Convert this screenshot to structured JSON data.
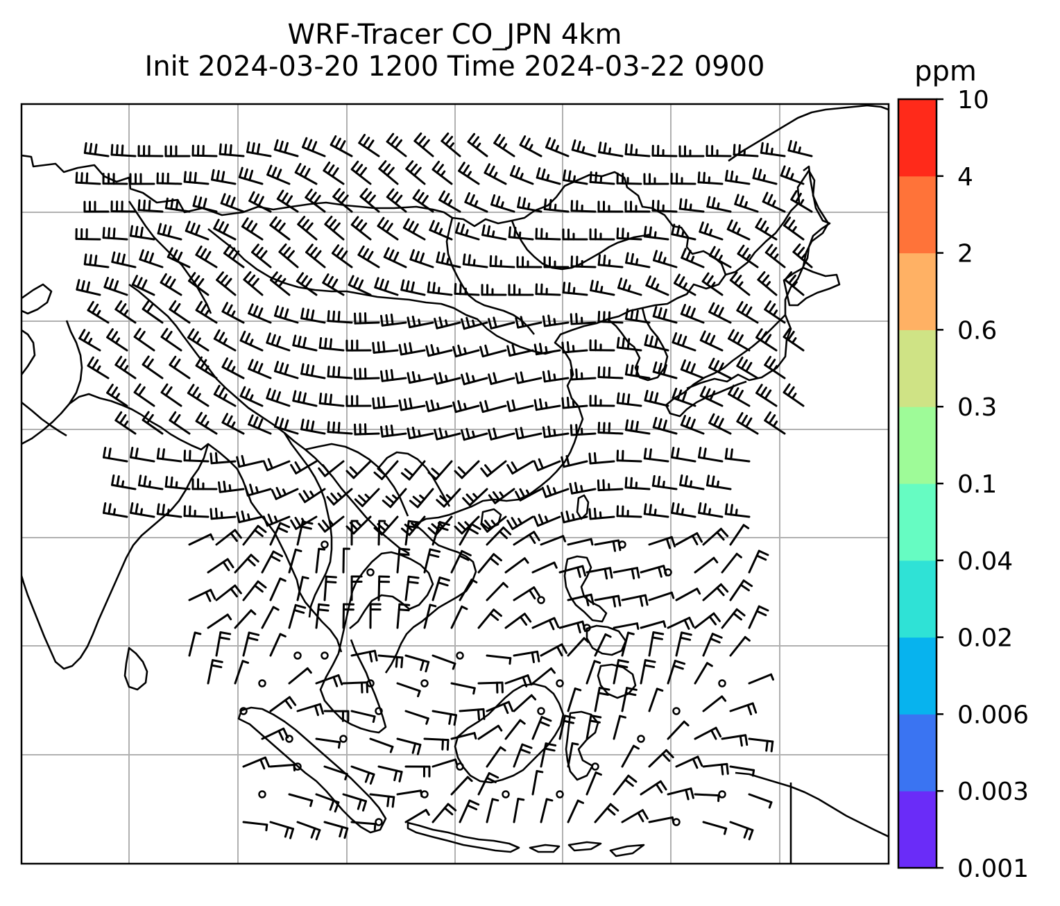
{
  "title": {
    "line1": "WRF-Tracer CO_JPN 4km",
    "line2": "Init 2024-03-20 1200 Time 2024-03-22 0900"
  },
  "colorbar": {
    "unit": "ppm",
    "tick_labels": [
      "0.001",
      "0.003",
      "0.006",
      "0.02",
      "0.04",
      "0.1",
      "0.3",
      "0.6",
      "2",
      "4",
      "10"
    ],
    "colors": [
      "#6a2cf8",
      "#3a74f2",
      "#07b3ee",
      "#2fe2d6",
      "#66fcc2",
      "#9efb98",
      "#cfe385",
      "#ffb164",
      "#ff7339",
      "#ff2a1a"
    ]
  },
  "map": {
    "gridlines": true,
    "gridline_color": "#b0b0b0",
    "coastline_color": "#000000",
    "barb_color": "#000000"
  }
}
